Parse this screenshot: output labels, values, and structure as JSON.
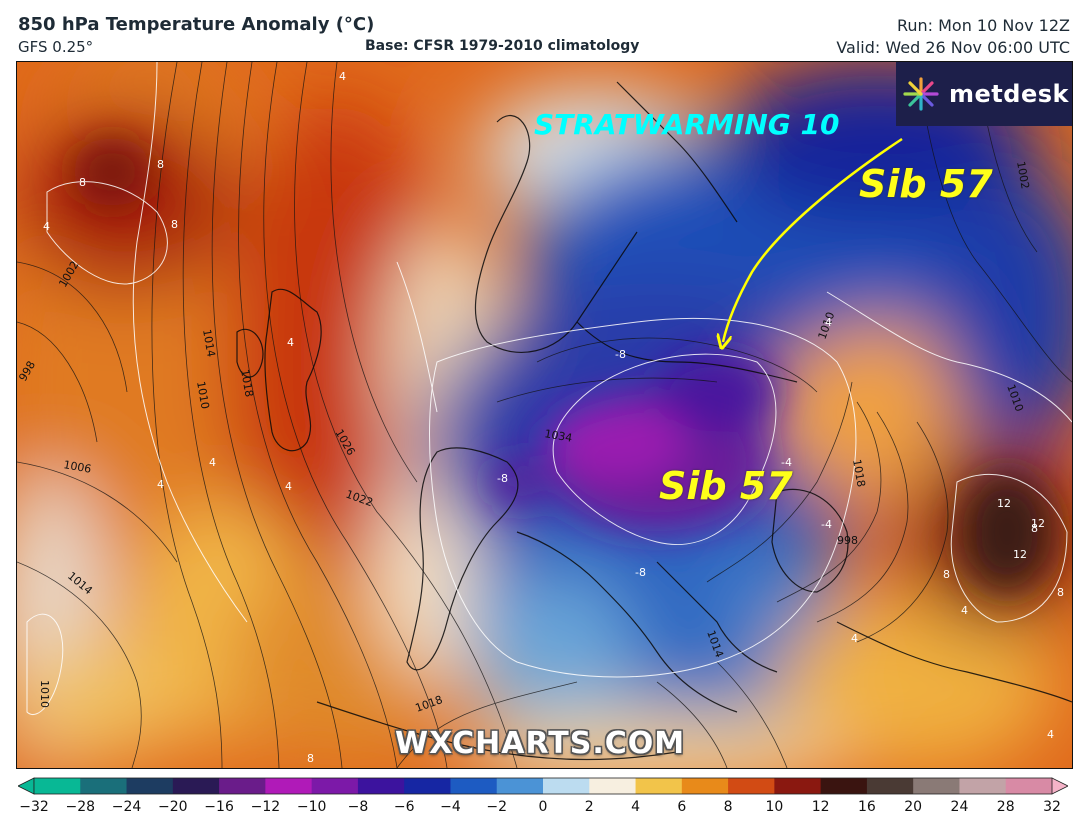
{
  "header": {
    "title": "850 hPa Temperature Anomaly (°C)",
    "model": "GFS 0.25°",
    "base": "Base: CFSR 1979-2010 climatology",
    "run": "Run: Mon 10 Nov 12Z",
    "valid": "Valid: Wed 26 Nov 06:00 UTC"
  },
  "logo": {
    "text": "metdesk",
    "icon": "metdesk-burst-icon"
  },
  "watermark": "WXCHARTS.COM",
  "annotations": {
    "stratwarming": "STRATWARMING 10",
    "sib_top": "Sib 57",
    "sib_center": "Sib 57",
    "arrow_color": "#ffff00",
    "strat_color": "#00ffff"
  },
  "isobar_labels": [
    "1002",
    "1014",
    "1010",
    "1018",
    "998",
    "1006",
    "1026",
    "1022",
    "1014",
    "1034",
    "1010",
    "1010",
    "1002",
    "998",
    "1018",
    "1018",
    "1014",
    "1010"
  ],
  "anomaly_labels": [
    "8",
    "8",
    "8",
    "4",
    "4",
    "4",
    "4",
    "4",
    "-8",
    "-8",
    "-8",
    "-4",
    "-4",
    "4",
    "4",
    "8",
    "12",
    "12",
    "12",
    "8",
    "8",
    "4",
    "8",
    "4",
    "4"
  ],
  "colorbar": {
    "ticks": [
      "−32",
      "−28",
      "−24",
      "−20",
      "−16",
      "−12",
      "−10",
      "−8",
      "−6",
      "−4",
      "−2",
      "0",
      "2",
      "4",
      "6",
      "8",
      "10",
      "12",
      "16",
      "20",
      "24",
      "28",
      "32"
    ],
    "colors": [
      "#08b895",
      "#1a6f7a",
      "#1d3c61",
      "#2a1a55",
      "#6a1c8a",
      "#b01ab8",
      "#7c19a8",
      "#3c139e",
      "#1626a3",
      "#1d5bc2",
      "#4b93d6",
      "#bcdcf0",
      "#f7efe0",
      "#f2c44a",
      "#e88a1a",
      "#d24b14",
      "#8a1810",
      "#3a1410",
      "#4a3a34",
      "#8a7a76",
      "#c2a3a7",
      "#d88aa5",
      "#f5b3c8"
    ]
  }
}
